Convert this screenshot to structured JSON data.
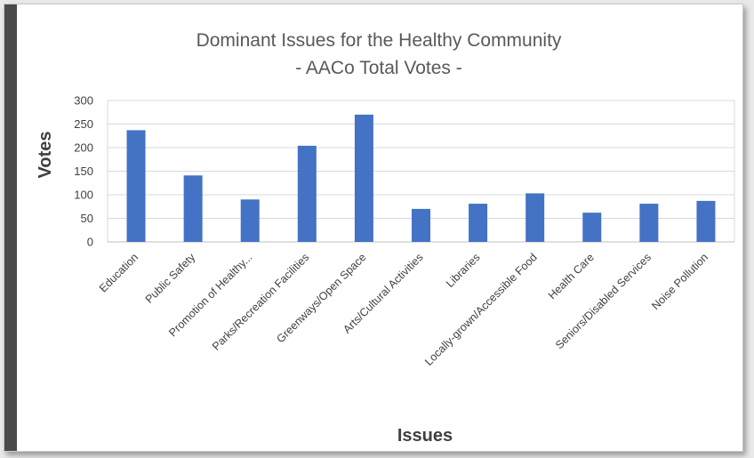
{
  "chart_data": {
    "type": "bar",
    "title": "Dominant Issues for the Healthy Community",
    "subtitle": "- AACo Total Votes -",
    "xlabel": "Issues",
    "ylabel": "Votes",
    "ylim": [
      0,
      300
    ],
    "yticks": [
      "0",
      "50",
      "100",
      "150",
      "200",
      "250",
      "300"
    ],
    "grid": true,
    "categories": [
      "Education",
      "Public Safety",
      "Promotion of Healthy...",
      "Parks/Recreation Facilities",
      "Greenways/Open Space",
      "Arts/Cultural Activities",
      "Libraries",
      "Locally-grown/Accessible Food",
      "Health Care",
      "Seniors/Disabled Services",
      "Noise Pollution"
    ],
    "values": [
      237,
      141,
      90,
      204,
      270,
      70,
      81,
      103,
      62,
      81,
      87
    ],
    "bar_color": "#4472c4"
  }
}
